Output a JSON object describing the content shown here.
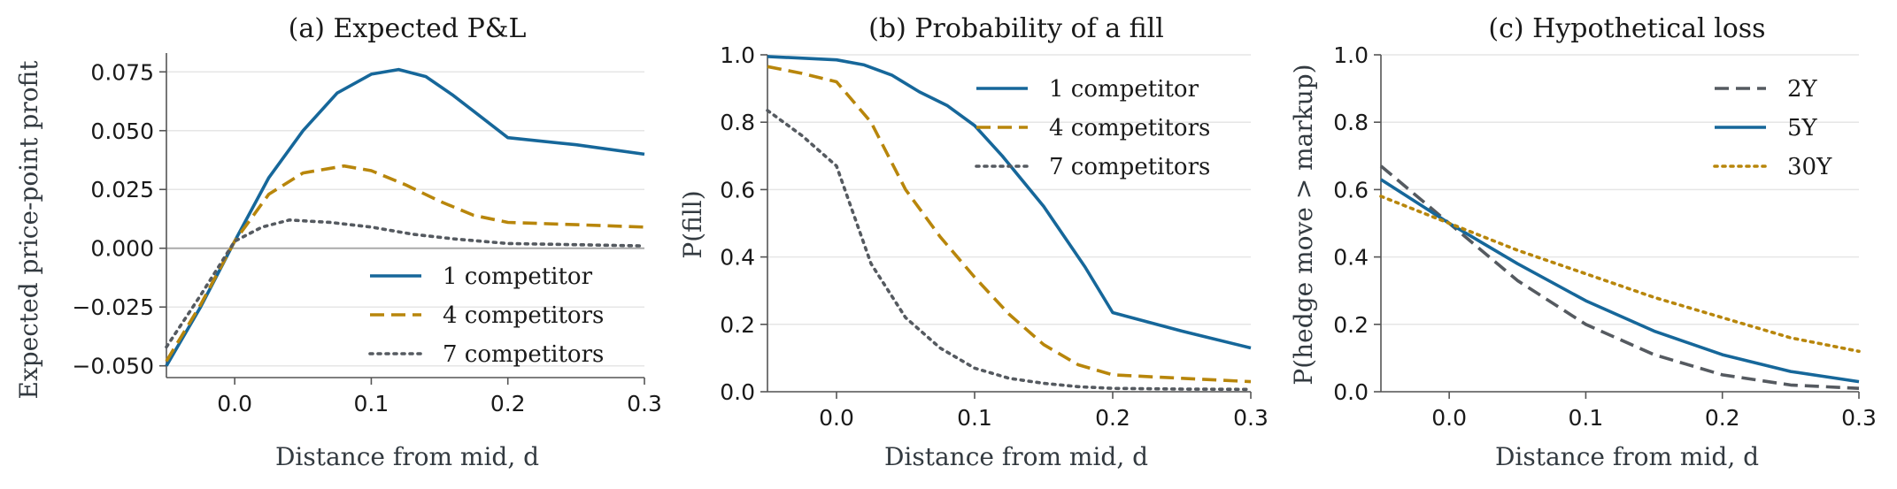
{
  "chart_data": [
    {
      "type": "line",
      "title": "(a) Expected P&L",
      "xlabel": "Distance from mid, d",
      "ylabel": "Expected price-point profit",
      "xlim": [
        -0.05,
        0.3
      ],
      "ylim": [
        -0.055,
        0.083
      ],
      "xticks": [
        0.0,
        0.1,
        0.2,
        0.3
      ],
      "xtick_labels": [
        "0.0",
        "0.1",
        "0.2",
        "0.3"
      ],
      "yticks": [
        -0.05,
        -0.025,
        0.0,
        0.025,
        0.05,
        0.075
      ],
      "ytick_labels": [
        "−0.050",
        "−0.025",
        "0.000",
        "0.025",
        "0.050",
        "0.075"
      ],
      "grid": "horizontal",
      "zero_line": true,
      "legend": "bottom-right",
      "series": [
        {
          "name": "1 competitor",
          "color": "#16679a",
          "style": "solid",
          "x": [
            -0.05,
            -0.025,
            0.0,
            0.025,
            0.05,
            0.075,
            0.1,
            0.12,
            0.14,
            0.16,
            0.18,
            0.2,
            0.25,
            0.3
          ],
          "y": [
            -0.05,
            -0.025,
            0.003,
            0.03,
            0.05,
            0.066,
            0.074,
            0.076,
            0.073,
            0.065,
            0.056,
            0.047,
            0.044,
            0.04
          ]
        },
        {
          "name": "4 competitors",
          "color": "#b8860b",
          "style": "dashed",
          "x": [
            -0.05,
            -0.025,
            0.0,
            0.025,
            0.05,
            0.08,
            0.1,
            0.125,
            0.15,
            0.175,
            0.2,
            0.25,
            0.3
          ],
          "y": [
            -0.048,
            -0.024,
            0.003,
            0.023,
            0.032,
            0.035,
            0.033,
            0.027,
            0.02,
            0.014,
            0.011,
            0.01,
            0.009
          ]
        },
        {
          "name": "7 competitors",
          "color": "#555a60",
          "style": "dotted",
          "x": [
            -0.05,
            -0.025,
            0.0,
            0.02,
            0.04,
            0.07,
            0.1,
            0.13,
            0.16,
            0.2,
            0.25,
            0.3
          ],
          "y": [
            -0.042,
            -0.02,
            0.003,
            0.009,
            0.012,
            0.011,
            0.009,
            0.006,
            0.004,
            0.002,
            0.0015,
            0.001
          ]
        }
      ]
    },
    {
      "type": "line",
      "title": "(b) Probability of a fill",
      "xlabel": "Distance from mid, d",
      "ylabel": "P(fill)",
      "xlim": [
        -0.05,
        0.3
      ],
      "ylim": [
        0.0,
        1.0
      ],
      "xticks": [
        0.0,
        0.1,
        0.2,
        0.3
      ],
      "xtick_labels": [
        "0.0",
        "0.1",
        "0.2",
        "0.3"
      ],
      "yticks": [
        0.0,
        0.2,
        0.4,
        0.6,
        0.8,
        1.0
      ],
      "ytick_labels": [
        "0.0",
        "0.2",
        "0.4",
        "0.6",
        "0.8",
        "1.0"
      ],
      "grid": "horizontal",
      "legend": "top-right",
      "series": [
        {
          "name": "1 competitor",
          "color": "#16679a",
          "style": "solid",
          "x": [
            -0.05,
            0.0,
            0.02,
            0.04,
            0.06,
            0.08,
            0.1,
            0.12,
            0.15,
            0.18,
            0.2,
            0.25,
            0.3
          ],
          "y": [
            0.995,
            0.985,
            0.97,
            0.94,
            0.89,
            0.85,
            0.79,
            0.7,
            0.55,
            0.37,
            0.235,
            0.18,
            0.13
          ]
        },
        {
          "name": "4 competitors",
          "color": "#b8860b",
          "style": "dashed",
          "x": [
            -0.05,
            -0.025,
            0.0,
            0.025,
            0.05,
            0.075,
            0.1,
            0.125,
            0.15,
            0.175,
            0.2,
            0.25,
            0.3
          ],
          "y": [
            0.965,
            0.945,
            0.92,
            0.8,
            0.6,
            0.46,
            0.34,
            0.23,
            0.14,
            0.08,
            0.05,
            0.04,
            0.03
          ]
        },
        {
          "name": "7 competitors",
          "color": "#555a60",
          "style": "dotted",
          "x": [
            -0.05,
            -0.025,
            0.0,
            0.025,
            0.05,
            0.075,
            0.1,
            0.125,
            0.15,
            0.175,
            0.2,
            0.25,
            0.3
          ],
          "y": [
            0.835,
            0.76,
            0.67,
            0.38,
            0.22,
            0.13,
            0.07,
            0.04,
            0.025,
            0.015,
            0.01,
            0.008,
            0.007
          ]
        }
      ]
    },
    {
      "type": "line",
      "title": "(c) Hypothetical loss",
      "xlabel": "Distance from mid, d",
      "ylabel": "P(hedge move > markup)",
      "xlim": [
        -0.05,
        0.3
      ],
      "ylim": [
        0.0,
        1.0
      ],
      "xticks": [
        0.0,
        0.1,
        0.2,
        0.3
      ],
      "xtick_labels": [
        "0.0",
        "0.1",
        "0.2",
        "0.3"
      ],
      "yticks": [
        0.0,
        0.2,
        0.4,
        0.6,
        0.8,
        1.0
      ],
      "ytick_labels": [
        "0.0",
        "0.2",
        "0.4",
        "0.6",
        "0.8",
        "1.0"
      ],
      "grid": "horizontal",
      "legend": "top-right",
      "series": [
        {
          "name": "2Y",
          "color": "#555a60",
          "style": "dashed",
          "x": [
            -0.05,
            0.0,
            0.05,
            0.1,
            0.15,
            0.2,
            0.25,
            0.3
          ],
          "y": [
            0.67,
            0.5,
            0.33,
            0.2,
            0.11,
            0.05,
            0.02,
            0.01
          ]
        },
        {
          "name": "5Y",
          "color": "#16679a",
          "style": "solid",
          "x": [
            -0.05,
            0.0,
            0.05,
            0.1,
            0.15,
            0.2,
            0.25,
            0.3
          ],
          "y": [
            0.63,
            0.5,
            0.38,
            0.27,
            0.18,
            0.11,
            0.06,
            0.03
          ]
        },
        {
          "name": "30Y",
          "color": "#b8860b",
          "style": "dotted",
          "x": [
            -0.05,
            0.0,
            0.05,
            0.1,
            0.15,
            0.2,
            0.25,
            0.3
          ],
          "y": [
            0.58,
            0.5,
            0.42,
            0.35,
            0.28,
            0.22,
            0.16,
            0.12
          ]
        }
      ]
    }
  ]
}
